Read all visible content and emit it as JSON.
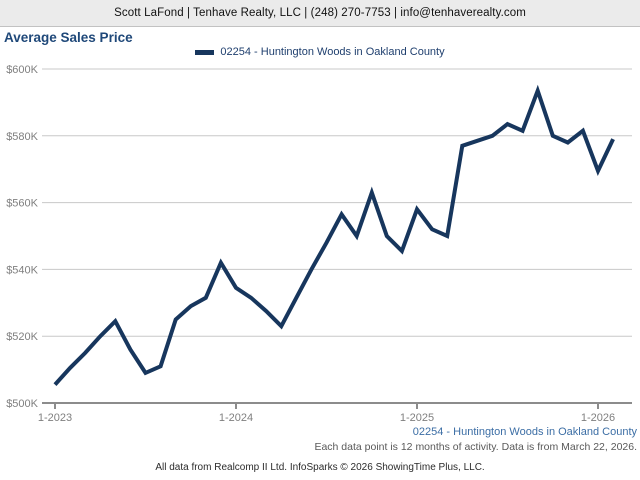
{
  "header": {
    "contact_line": "Scott LaFond | Tenhave Realty, LLC | (248) 270-7753 | info@tenhaverealty.com"
  },
  "title": "Average Sales Price",
  "legend": {
    "label": "02254 - Huntington Woods in Oakland County"
  },
  "footer": {
    "series_label": "02254 - Huntington Woods in Oakland County",
    "note": "Each data point is 12 months of activity. Data is from March 22, 2026.",
    "attribution": "All data from Realcomp II Ltd. InfoSparks © 2026 ShowingTime Plus, LLC."
  },
  "colors": {
    "line": "#17365d",
    "title_text": "#1f4879",
    "legend_text": "#1f3f6e",
    "series_label_text": "#3c6ea5",
    "grid": "#c8c8c8",
    "axis": "#8c8c8c",
    "axis_label_text": "#7f7f7f",
    "note_text": "#595959",
    "header_bg": "#ebebeb"
  },
  "chart_data": {
    "type": "line",
    "title": "Average Sales Price",
    "series_name": "02254 - Huntington Woods in Oakland County",
    "x": [
      "1-2023",
      "2-2023",
      "3-2023",
      "4-2023",
      "5-2023",
      "6-2023",
      "7-2023",
      "8-2023",
      "9-2023",
      "10-2023",
      "11-2023",
      "12-2023",
      "1-2024",
      "2-2024",
      "3-2024",
      "4-2024",
      "5-2024",
      "6-2024",
      "7-2024",
      "8-2024",
      "9-2024",
      "10-2024",
      "11-2024",
      "12-2024",
      "1-2025",
      "2-2025",
      "3-2025",
      "4-2025",
      "5-2025",
      "6-2025",
      "7-2025",
      "8-2025",
      "9-2025",
      "10-2025",
      "11-2025",
      "12-2025",
      "1-2026",
      "2-2026"
    ],
    "values_unit": "USD thousands",
    "values": [
      505.5,
      510.5,
      515,
      520,
      524.5,
      516,
      509,
      511,
      525,
      529,
      531.5,
      542,
      534.5,
      531.5,
      527.5,
      523,
      531.5,
      540,
      548,
      556.5,
      550,
      563,
      550,
      545.5,
      558,
      552,
      550,
      577,
      578.5,
      580,
      583.5,
      581.5,
      593.5,
      580,
      578,
      581.5,
      569.5,
      579
    ],
    "ylim": [
      500,
      600
    ],
    "y_tick_values": [
      600,
      580,
      560,
      540,
      520,
      500
    ],
    "y_tick_labels": [
      "$600K",
      "$580K",
      "$560K",
      "$540K",
      "$520K",
      "$500K"
    ],
    "x_tick_indices": [
      0,
      12,
      24,
      36
    ],
    "x_tick_labels": [
      "1-2023",
      "1-2024",
      "1-2025",
      "1-2026"
    ],
    "grid": "horizontal",
    "legend_position": "top-center"
  }
}
